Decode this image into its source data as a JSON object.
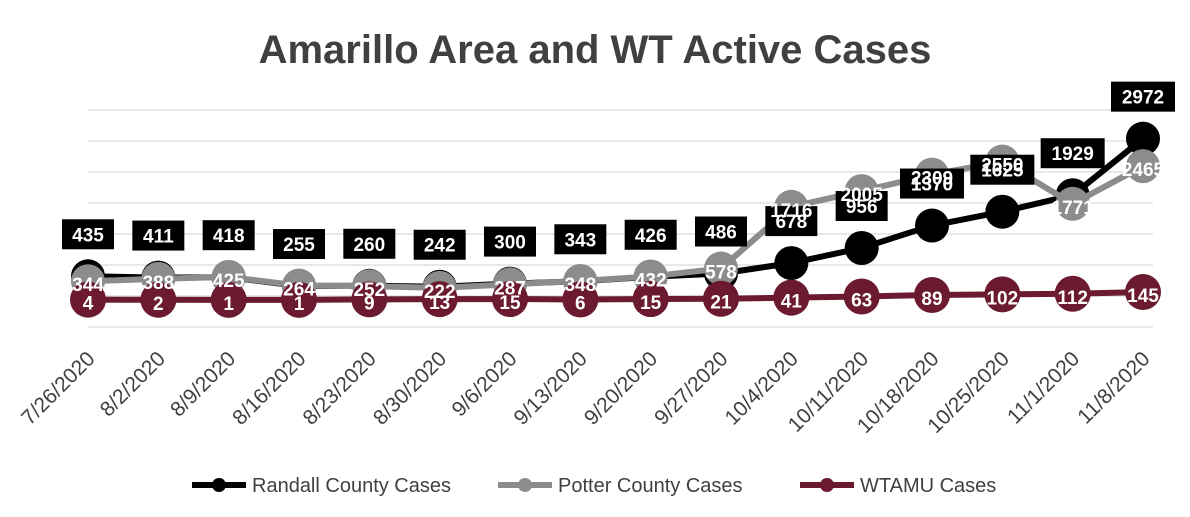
{
  "chart_data": {
    "type": "line",
    "title": "Amarillo Area and WT Active Cases",
    "xlabel": "",
    "ylabel": "",
    "ylim": [
      -500,
      3500
    ],
    "grid": true,
    "legend_position": "bottom",
    "categories": [
      "7/26/2020",
      "8/2/2020",
      "8/9/2020",
      "8/16/2020",
      "8/23/2020",
      "8/30/2020",
      "9/6/2020",
      "9/13/2020",
      "9/20/2020",
      "9/27/2020",
      "10/4/2020",
      "10/11/2020",
      "10/18/2020",
      "10/25/2020",
      "11/1/2020",
      "11/8/2020"
    ],
    "series": [
      {
        "name": "Randall County Cases",
        "color": "#000000",
        "label_bg": "#000000",
        "label_fg": "#ffffff",
        "values": [
          435,
          411,
          418,
          255,
          260,
          242,
          300,
          343,
          426,
          486,
          678,
          956,
          1370,
          1625,
          1929,
          2972
        ]
      },
      {
        "name": "Potter County Cases",
        "color": "#8c8c8c",
        "label_bg": "#8c8c8c",
        "label_fg": "#ffffff",
        "values": [
          344,
          388,
          425,
          264,
          252,
          222,
          287,
          348,
          432,
          578,
          1716,
          2005,
          2309,
          2550,
          1771,
          2465
        ]
      },
      {
        "name": "WTAMU Cases",
        "color": "#6b1a30",
        "label_bg": "#6b1a30",
        "label_fg": "#ffffff",
        "values": [
          4,
          2,
          1,
          1,
          9,
          13,
          15,
          6,
          15,
          21,
          41,
          63,
          89,
          102,
          112,
          145
        ]
      }
    ]
  }
}
